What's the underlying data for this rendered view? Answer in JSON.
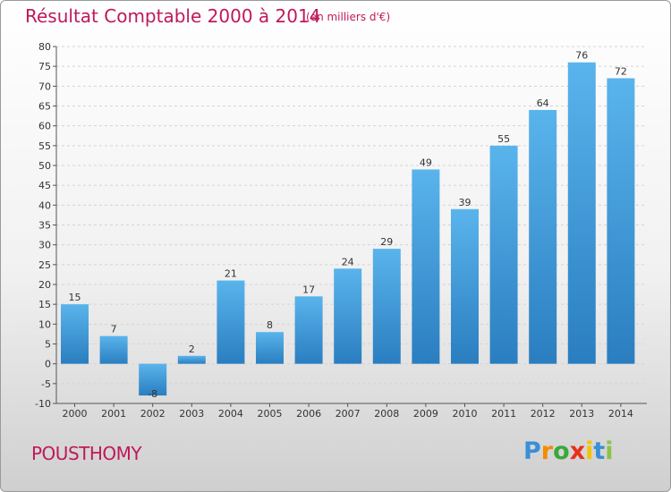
{
  "header": {
    "title": "Résultat Comptable 2000 à 2014",
    "subtitle": "(en milliers d'€)"
  },
  "footer": {
    "commune": "POUSTHOMY",
    "logo_letters": [
      {
        "ch": "P",
        "color": "#3a8fd6"
      },
      {
        "ch": "r",
        "color": "#f28c00"
      },
      {
        "ch": "o",
        "color": "#3aa83a"
      },
      {
        "ch": "x",
        "color": "#e8301c"
      },
      {
        "ch": "i",
        "color": "#f2c400"
      },
      {
        "ch": "t",
        "color": "#3a8fd6"
      },
      {
        "ch": "i",
        "color": "#8bc34a"
      }
    ]
  },
  "chart_data": {
    "type": "bar",
    "title": "Résultat Comptable 2000 à 2014",
    "categories": [
      "2000",
      "2001",
      "2002",
      "2003",
      "2004",
      "2005",
      "2006",
      "2007",
      "2008",
      "2009",
      "2010",
      "2011",
      "2012",
      "2013",
      "2014"
    ],
    "values": [
      15,
      7,
      -8,
      2,
      21,
      8,
      17,
      24,
      29,
      49,
      39,
      55,
      64,
      76,
      72
    ],
    "ylim": [
      -10,
      80
    ],
    "yticks": [
      -10,
      -5,
      0,
      5,
      10,
      15,
      20,
      25,
      30,
      35,
      40,
      45,
      50,
      55,
      60,
      65,
      70,
      75,
      80
    ],
    "grid": true,
    "bar_color_light": "#5ab4ec",
    "bar_color_dark": "#2a7ec0"
  }
}
